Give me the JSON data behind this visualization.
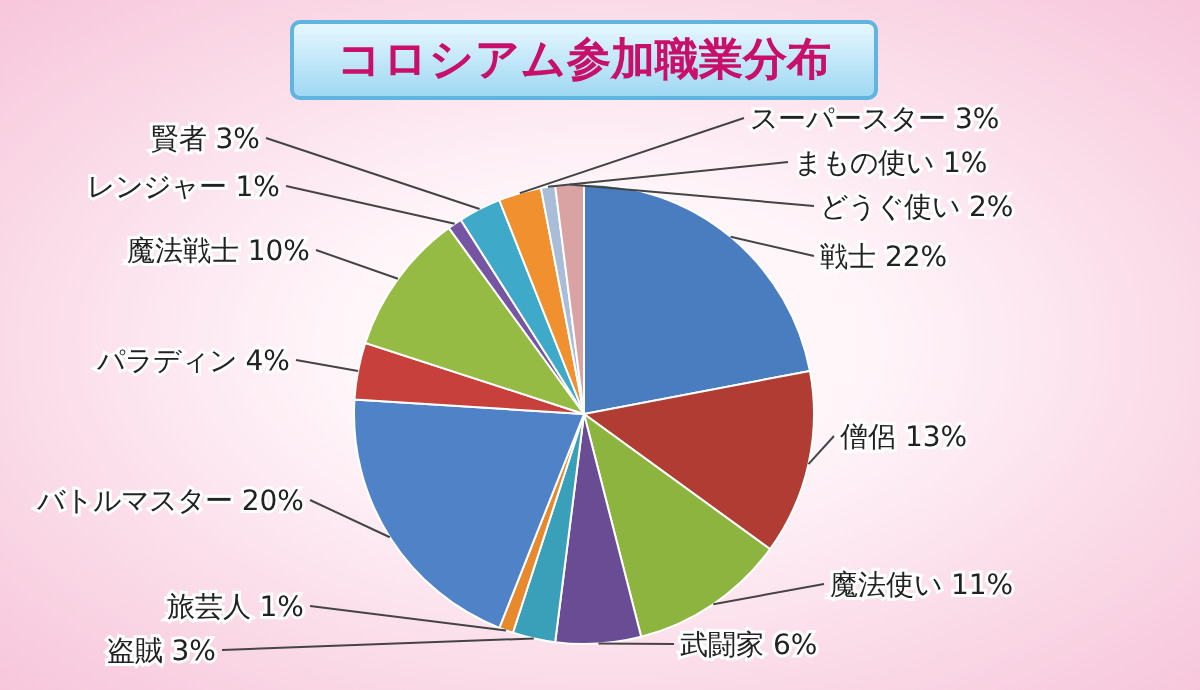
{
  "chart_data": {
    "type": "pie",
    "title": "コロシアム参加職業分布",
    "categories": [
      "戦士",
      "僧侶",
      "魔法使い",
      "武闘家",
      "盗賊",
      "旅芸人",
      "バトルマスター",
      "パラディン",
      "魔法戦士",
      "レンジャー",
      "賢者",
      "スーパースター",
      "まもの使い",
      "どうぐ使い"
    ],
    "values": [
      22,
      13,
      11,
      6,
      3,
      1,
      20,
      4,
      10,
      1,
      3,
      3,
      1,
      2
    ],
    "value_labels": [
      "22%",
      "13%",
      "11%",
      "6%",
      "3%",
      "1%",
      "20%",
      "4%",
      "10%",
      "1%",
      "3%",
      "3%",
      "1%",
      "2%"
    ],
    "colors": [
      "#4a7cc0",
      "#b03c34",
      "#8db43e",
      "#6a4c94",
      "#3a9fb8",
      "#e8892e",
      "#4f82c6",
      "#c8403c",
      "#95bb44",
      "#7656a2",
      "#3ea9c8",
      "#f0902e",
      "#a9bcd8",
      "#d9a3a3"
    ]
  }
}
